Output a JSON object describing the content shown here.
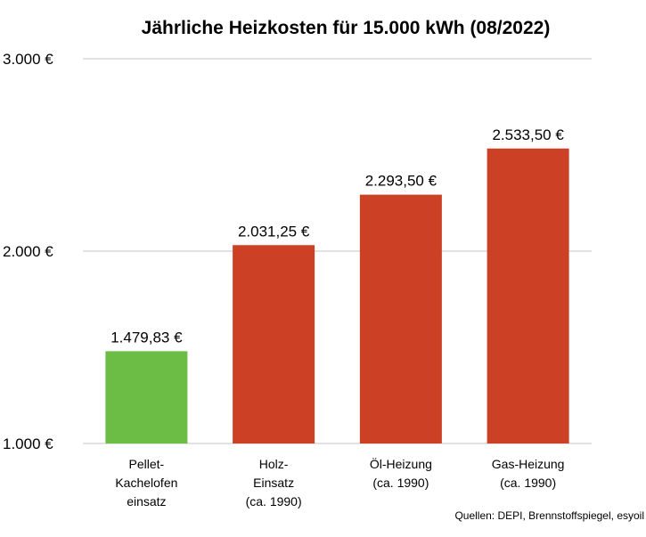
{
  "chart_data": {
    "type": "bar",
    "title": "Jährliche Heizkosten für 15.000 kWh (08/2022)",
    "categories": [
      [
        "Pellet-",
        "Kachelofen",
        "einsatz"
      ],
      [
        "Holz-",
        "Einsatz",
        "(ca. 1990)"
      ],
      [
        "Öl-Heizung",
        "(ca. 1990)"
      ],
      [
        "Gas-Heizung",
        "(ca. 1990)"
      ]
    ],
    "values": [
      1479.83,
      2031.25,
      2293.5,
      2533.5
    ],
    "value_labels": [
      "1.479,83 €",
      "2.031,25 €",
      "2.293,50 €",
      "2.533,50 €"
    ],
    "bar_colors": [
      "#6cbd45",
      "#cc4125",
      "#cc4125",
      "#cc4125"
    ],
    "ylim": [
      1000,
      3000
    ],
    "yticks": [
      1000,
      2000,
      3000
    ],
    "ytick_labels": [
      "1.000 €",
      "2.000 €",
      "3.000 €"
    ],
    "grid": true,
    "gridline_color": "#d9d9d9",
    "source": "Quellen: DEPI, Brennstoffspiegel, esyoil"
  }
}
